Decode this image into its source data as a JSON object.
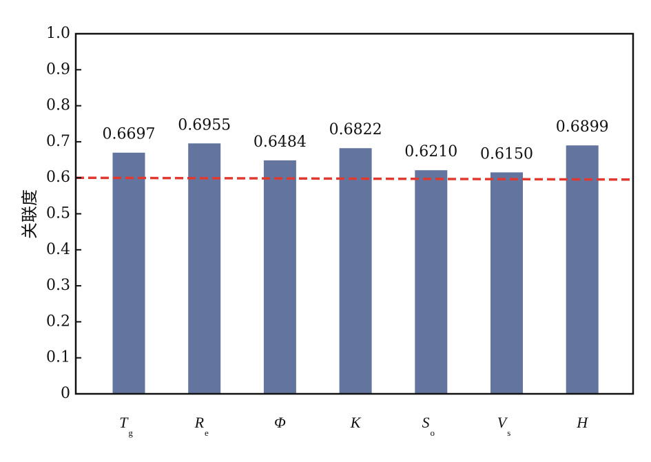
{
  "chart_data": {
    "type": "bar",
    "categories": [
      {
        "main": "T",
        "sub": "g"
      },
      {
        "main": "R",
        "sub": "e"
      },
      {
        "main": "Φ",
        "sub": ""
      },
      {
        "main": "K",
        "sub": ""
      },
      {
        "main": "S",
        "sub": "o"
      },
      {
        "main": "V",
        "sub": "s"
      },
      {
        "main": "H",
        "sub": ""
      }
    ],
    "values": [
      0.6697,
      0.6955,
      0.6484,
      0.6822,
      0.621,
      0.615,
      0.6899
    ],
    "value_labels": [
      "0.6697",
      "0.6955",
      "0.6484",
      "0.6822",
      "0.6210",
      "0.6150",
      "0.6899"
    ],
    "ylabel": "关联度",
    "ylim": [
      0,
      1.0
    ],
    "yticks": [
      "0",
      "0.1",
      "0.2",
      "0.3",
      "0.4",
      "0.5",
      "0.6",
      "0.7",
      "0.8",
      "0.9",
      "1.0"
    ],
    "reference_line": {
      "y_start": 0.6,
      "y_end": 0.595,
      "style": "dashed",
      "color": "#e03a30"
    },
    "bar_color": "#63759f",
    "grid": false,
    "legend": "none"
  }
}
